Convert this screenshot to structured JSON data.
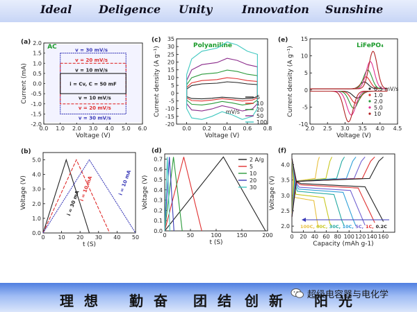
{
  "header": {
    "motto": [
      "Ideal",
      "Deligence",
      "Unity",
      "Innovation",
      "Sunshine"
    ]
  },
  "footer": {
    "chinese_motto": [
      "理 想",
      "勤 奋",
      "团 结",
      "创 新",
      "阳 光"
    ],
    "watermark": "超级电容器与电化学"
  },
  "chart_data": [
    {
      "panel": "(a)",
      "type": "line",
      "title": "AC",
      "xlabel": "Voltage (V)",
      "ylabel": "Current (mA)",
      "xlim": [
        0,
        6
      ],
      "ylim": [
        -2,
        2
      ],
      "xticks": [
        "0.0",
        "1.0",
        "2.0",
        "3.0",
        "4.0",
        "5.0",
        "6.0"
      ],
      "yticks": [
        "-2.0",
        "-1.5",
        "-1.0",
        "-0.5",
        "0.0",
        "0.5",
        "1.0",
        "1.5",
        "2.0"
      ],
      "series": [
        {
          "name": "v = 30 mV/s",
          "color": "#3a3ab8",
          "x": [
            1.0,
            5.0,
            5.0,
            1.0,
            1.0
          ],
          "y": [
            1.5,
            1.5,
            -1.5,
            -1.5,
            1.5
          ]
        },
        {
          "name": "v = 20 mV/s",
          "color": "#e03030",
          "x": [
            1.0,
            5.0,
            5.0,
            1.0,
            1.0
          ],
          "y": [
            1.0,
            1.0,
            -1.0,
            -1.0,
            1.0
          ]
        },
        {
          "name": "v = 10 mV/s",
          "color": "#222222",
          "x": [
            1.0,
            5.0,
            5.0,
            1.0,
            1.0
          ],
          "y": [
            0.5,
            0.5,
            -0.5,
            -0.5,
            0.5
          ]
        }
      ],
      "annotations": [
        {
          "text": "v = 30 mV/s",
          "x": 2.9,
          "y": 1.68,
          "color": "#3a3ab8"
        },
        {
          "text": "v = 20 mV/s",
          "x": 2.9,
          "y": 1.18,
          "color": "#e03030"
        },
        {
          "text": "v = 10 mV/s",
          "x": 2.9,
          "y": 0.68,
          "color": "#222222"
        },
        {
          "text": "i = Cv, C = 50 mF",
          "x": 3.0,
          "y": 0.0,
          "color": "#222222"
        },
        {
          "text": "v = 10 mV/s",
          "x": 3.1,
          "y": -0.68,
          "color": "#222222"
        },
        {
          "text": "v = 20 mV/s",
          "x": 3.1,
          "y": -1.18,
          "color": "#e03030"
        },
        {
          "text": "v = 30 mV/s",
          "x": 3.1,
          "y": -1.68,
          "color": "#3a3ab8"
        }
      ]
    },
    {
      "panel": "(b)",
      "type": "line",
      "title": "",
      "xlabel": "t (S)",
      "ylabel": "Voltage (V)",
      "xlim": [
        0,
        50
      ],
      "ylim": [
        0,
        5.5
      ],
      "xticks": [
        "0",
        "10",
        "20",
        "30",
        "40",
        "50"
      ],
      "yticks": [
        "0.0",
        "1.0",
        "2.0",
        "3.0",
        "4.0",
        "5.0"
      ],
      "series": [
        {
          "name": "i = 30 mA",
          "color": "#222222",
          "x": [
            0,
            12.5,
            25
          ],
          "y": [
            0,
            5,
            0
          ]
        },
        {
          "name": "i = 10 mA",
          "color": "#e03030",
          "x": [
            0,
            18,
            36
          ],
          "y": [
            0,
            5,
            0
          ]
        },
        {
          "name": "i = 10 mA",
          "color": "#3a3ab8",
          "x": [
            0,
            25,
            50
          ],
          "y": [
            0,
            5,
            0
          ]
        }
      ],
      "annotations": [
        {
          "text": "i = 30 mA",
          "x": 17,
          "y": 2.0,
          "color": "#222222"
        },
        {
          "text": "i = 10 mA",
          "x": 24,
          "y": 3.0,
          "color": "#e03030"
        },
        {
          "text": "i = 10 mA",
          "x": 45,
          "y": 3.4,
          "color": "#3a3ab8"
        }
      ]
    },
    {
      "panel": "(c)",
      "type": "line",
      "title": "Polyaniline",
      "xlabel": "Voltage (V)",
      "ylabel": "Current density (A g⁻¹)",
      "xlim": [
        -0.1,
        0.8
      ],
      "ylim": [
        -20,
        35
      ],
      "xticks": [
        "0.0",
        "0.2",
        "0.4",
        "0.6",
        "0.8"
      ],
      "yticks": [
        "-20",
        "-15",
        "-10",
        "-5",
        "0",
        "5",
        "10",
        "15",
        "20",
        "25",
        "30",
        "35"
      ],
      "legend_title": "mV/s",
      "series": [
        {
          "name": "5",
          "color": "#222222",
          "scale": 0.22
        },
        {
          "name": "10",
          "color": "#e03030",
          "scale": 0.3
        },
        {
          "name": "20",
          "color": "#2a9a3a",
          "scale": 0.45
        },
        {
          "name": "50",
          "color": "#8a2a8a",
          "scale": 0.68
        },
        {
          "name": "100",
          "color": "#40c8c0",
          "scale": 1.0
        }
      ],
      "base_cv": {
        "x": [
          0.0,
          0.05,
          0.15,
          0.3,
          0.4,
          0.5,
          0.6,
          0.7,
          0.7,
          0.65,
          0.55,
          0.45,
          0.35,
          0.25,
          0.15,
          0.05,
          0.0,
          0.0
        ],
        "y": [
          12,
          22,
          27,
          29,
          33,
          31,
          27,
          25,
          -10,
          -15,
          -17,
          -14,
          -12,
          -15,
          -17,
          -16,
          -10,
          12
        ]
      }
    },
    {
      "panel": "(d)",
      "type": "line",
      "title": "",
      "xlabel": "t (S)",
      "ylabel": "Voltage (V)",
      "xlim": [
        0,
        200
      ],
      "ylim": [
        0,
        0.75
      ],
      "xticks": [
        "0",
        "50",
        "100",
        "150",
        "200"
      ],
      "yticks": [
        "0.0",
        "0.1",
        "0.2",
        "0.3",
        "0.4",
        "0.5",
        "0.6",
        "0.7"
      ],
      "series": [
        {
          "name": "2 A/g",
          "color": "#222222",
          "x": [
            0,
            114,
            196
          ],
          "y": [
            0,
            0.72,
            0
          ]
        },
        {
          "name": "5",
          "color": "#e03030",
          "x": [
            0,
            37,
            72
          ],
          "y": [
            0,
            0.72,
            0
          ]
        },
        {
          "name": "10",
          "color": "#2a9a3a",
          "x": [
            0,
            17,
            34
          ],
          "y": [
            0,
            0.72,
            0
          ]
        },
        {
          "name": "20",
          "color": "#3a3ab8",
          "x": [
            0,
            9,
            18
          ],
          "y": [
            0,
            0.72,
            0
          ]
        },
        {
          "name": "30",
          "color": "#40c8c0",
          "x": [
            0,
            5,
            10
          ],
          "y": [
            0,
            0.72,
            0
          ]
        }
      ]
    },
    {
      "panel": "(e)",
      "type": "line",
      "title": "LiFePO₄",
      "xlabel": "Voltage (V)",
      "ylabel": "Current density (A g⁻¹)",
      "xlim": [
        2.0,
        4.5
      ],
      "ylim": [
        -10,
        15
      ],
      "xticks": [
        "2.0",
        "2.5",
        "3.0",
        "3.5",
        "4.0",
        "4.5"
      ],
      "yticks": [
        "-10",
        "-5",
        "0",
        "5",
        "10",
        "15"
      ],
      "series": [
        {
          "name": "0.5 mV/s",
          "color": "#222222",
          "ox": 3.55,
          "oy": 2.0,
          "rx": 3.35,
          "ry": -2.0
        },
        {
          "name": "1.0",
          "color": "#e03030",
          "ox": 3.6,
          "oy": 3.5,
          "rx": 3.3,
          "ry": -3.5
        },
        {
          "name": "2.0",
          "color": "#2a9a3a",
          "ox": 3.65,
          "oy": 5.5,
          "rx": 3.25,
          "ry": -5.0
        },
        {
          "name": "5.0",
          "color": "#e03090",
          "ox": 3.72,
          "oy": 8.0,
          "rx": 3.18,
          "ry": -7.0
        },
        {
          "name": "10",
          "color": "#b02020",
          "ox": 3.8,
          "oy": 11.0,
          "rx": 3.1,
          "ry": -9.0
        }
      ]
    },
    {
      "panel": "(f)",
      "type": "line",
      "title": "",
      "xlabel": "Capacity (mAh g-1)",
      "ylabel": "Voltage (V)",
      "xlim": [
        0,
        180
      ],
      "ylim": [
        1.8,
        4.35
      ],
      "xticks": [
        "0",
        "20",
        "40",
        "60",
        "80",
        "100",
        "120",
        "140",
        "160"
      ],
      "yticks": [
        "2.0",
        "2.5",
        "3.0",
        "3.5",
        "4.0"
      ],
      "legend_text": [
        "100C,",
        "60C,",
        "30C,",
        "10C,",
        "5C,",
        "1C,",
        "0.2C"
      ],
      "series": [
        {
          "name": "100C",
          "color": "#e8c040",
          "cap": 48,
          "plateau": 2.95
        },
        {
          "name": "60C",
          "color": "#c8c820",
          "cap": 70,
          "plateau": 3.05
        },
        {
          "name": "30C",
          "color": "#20a8a0",
          "cap": 92,
          "plateau": 3.15
        },
        {
          "name": "10C",
          "color": "#30a0d8",
          "cap": 112,
          "plateau": 3.22
        },
        {
          "name": "5C",
          "color": "#7060d0",
          "cap": 128,
          "plateau": 3.28
        },
        {
          "name": "1C",
          "color": "#e03030",
          "cap": 145,
          "plateau": 3.36
        },
        {
          "name": "0.2C",
          "color": "#222222",
          "cap": 160,
          "plateau": 3.4
        }
      ]
    }
  ]
}
